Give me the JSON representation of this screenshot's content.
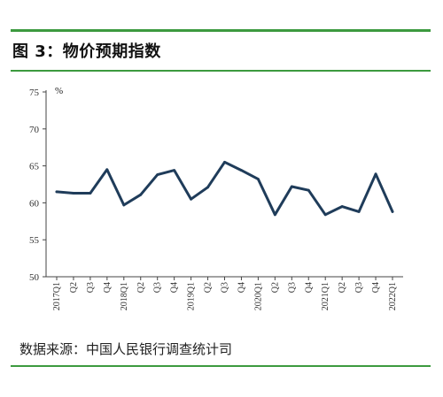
{
  "figure": {
    "title": "图 3：物价预期指数",
    "source": "数据来源：中国人民银行调查统计司"
  },
  "chart_data": {
    "type": "line",
    "unit_label": "%",
    "x": [
      "2017Q1",
      "Q2",
      "Q3",
      "Q4",
      "2018Q1",
      "Q2",
      "Q3",
      "Q4",
      "2019Q1",
      "Q2",
      "Q3",
      "Q4",
      "2020Q1",
      "Q2",
      "Q3",
      "Q4",
      "2021Q1",
      "Q2",
      "Q3",
      "Q4",
      "2022Q1"
    ],
    "series": [
      {
        "values": [
          61.5,
          61.3,
          61.3,
          64.5,
          59.7,
          61.1,
          63.8,
          64.4,
          60.5,
          62.1,
          65.5,
          64.4,
          63.2,
          58.4,
          62.2,
          61.7,
          58.4,
          59.5,
          58.8,
          63.9,
          58.8
        ]
      }
    ],
    "ylim": [
      50,
      75
    ],
    "yticks": [
      50,
      55,
      60,
      65,
      70,
      75
    ],
    "grid": false,
    "line_color": "#1f3c5a"
  }
}
